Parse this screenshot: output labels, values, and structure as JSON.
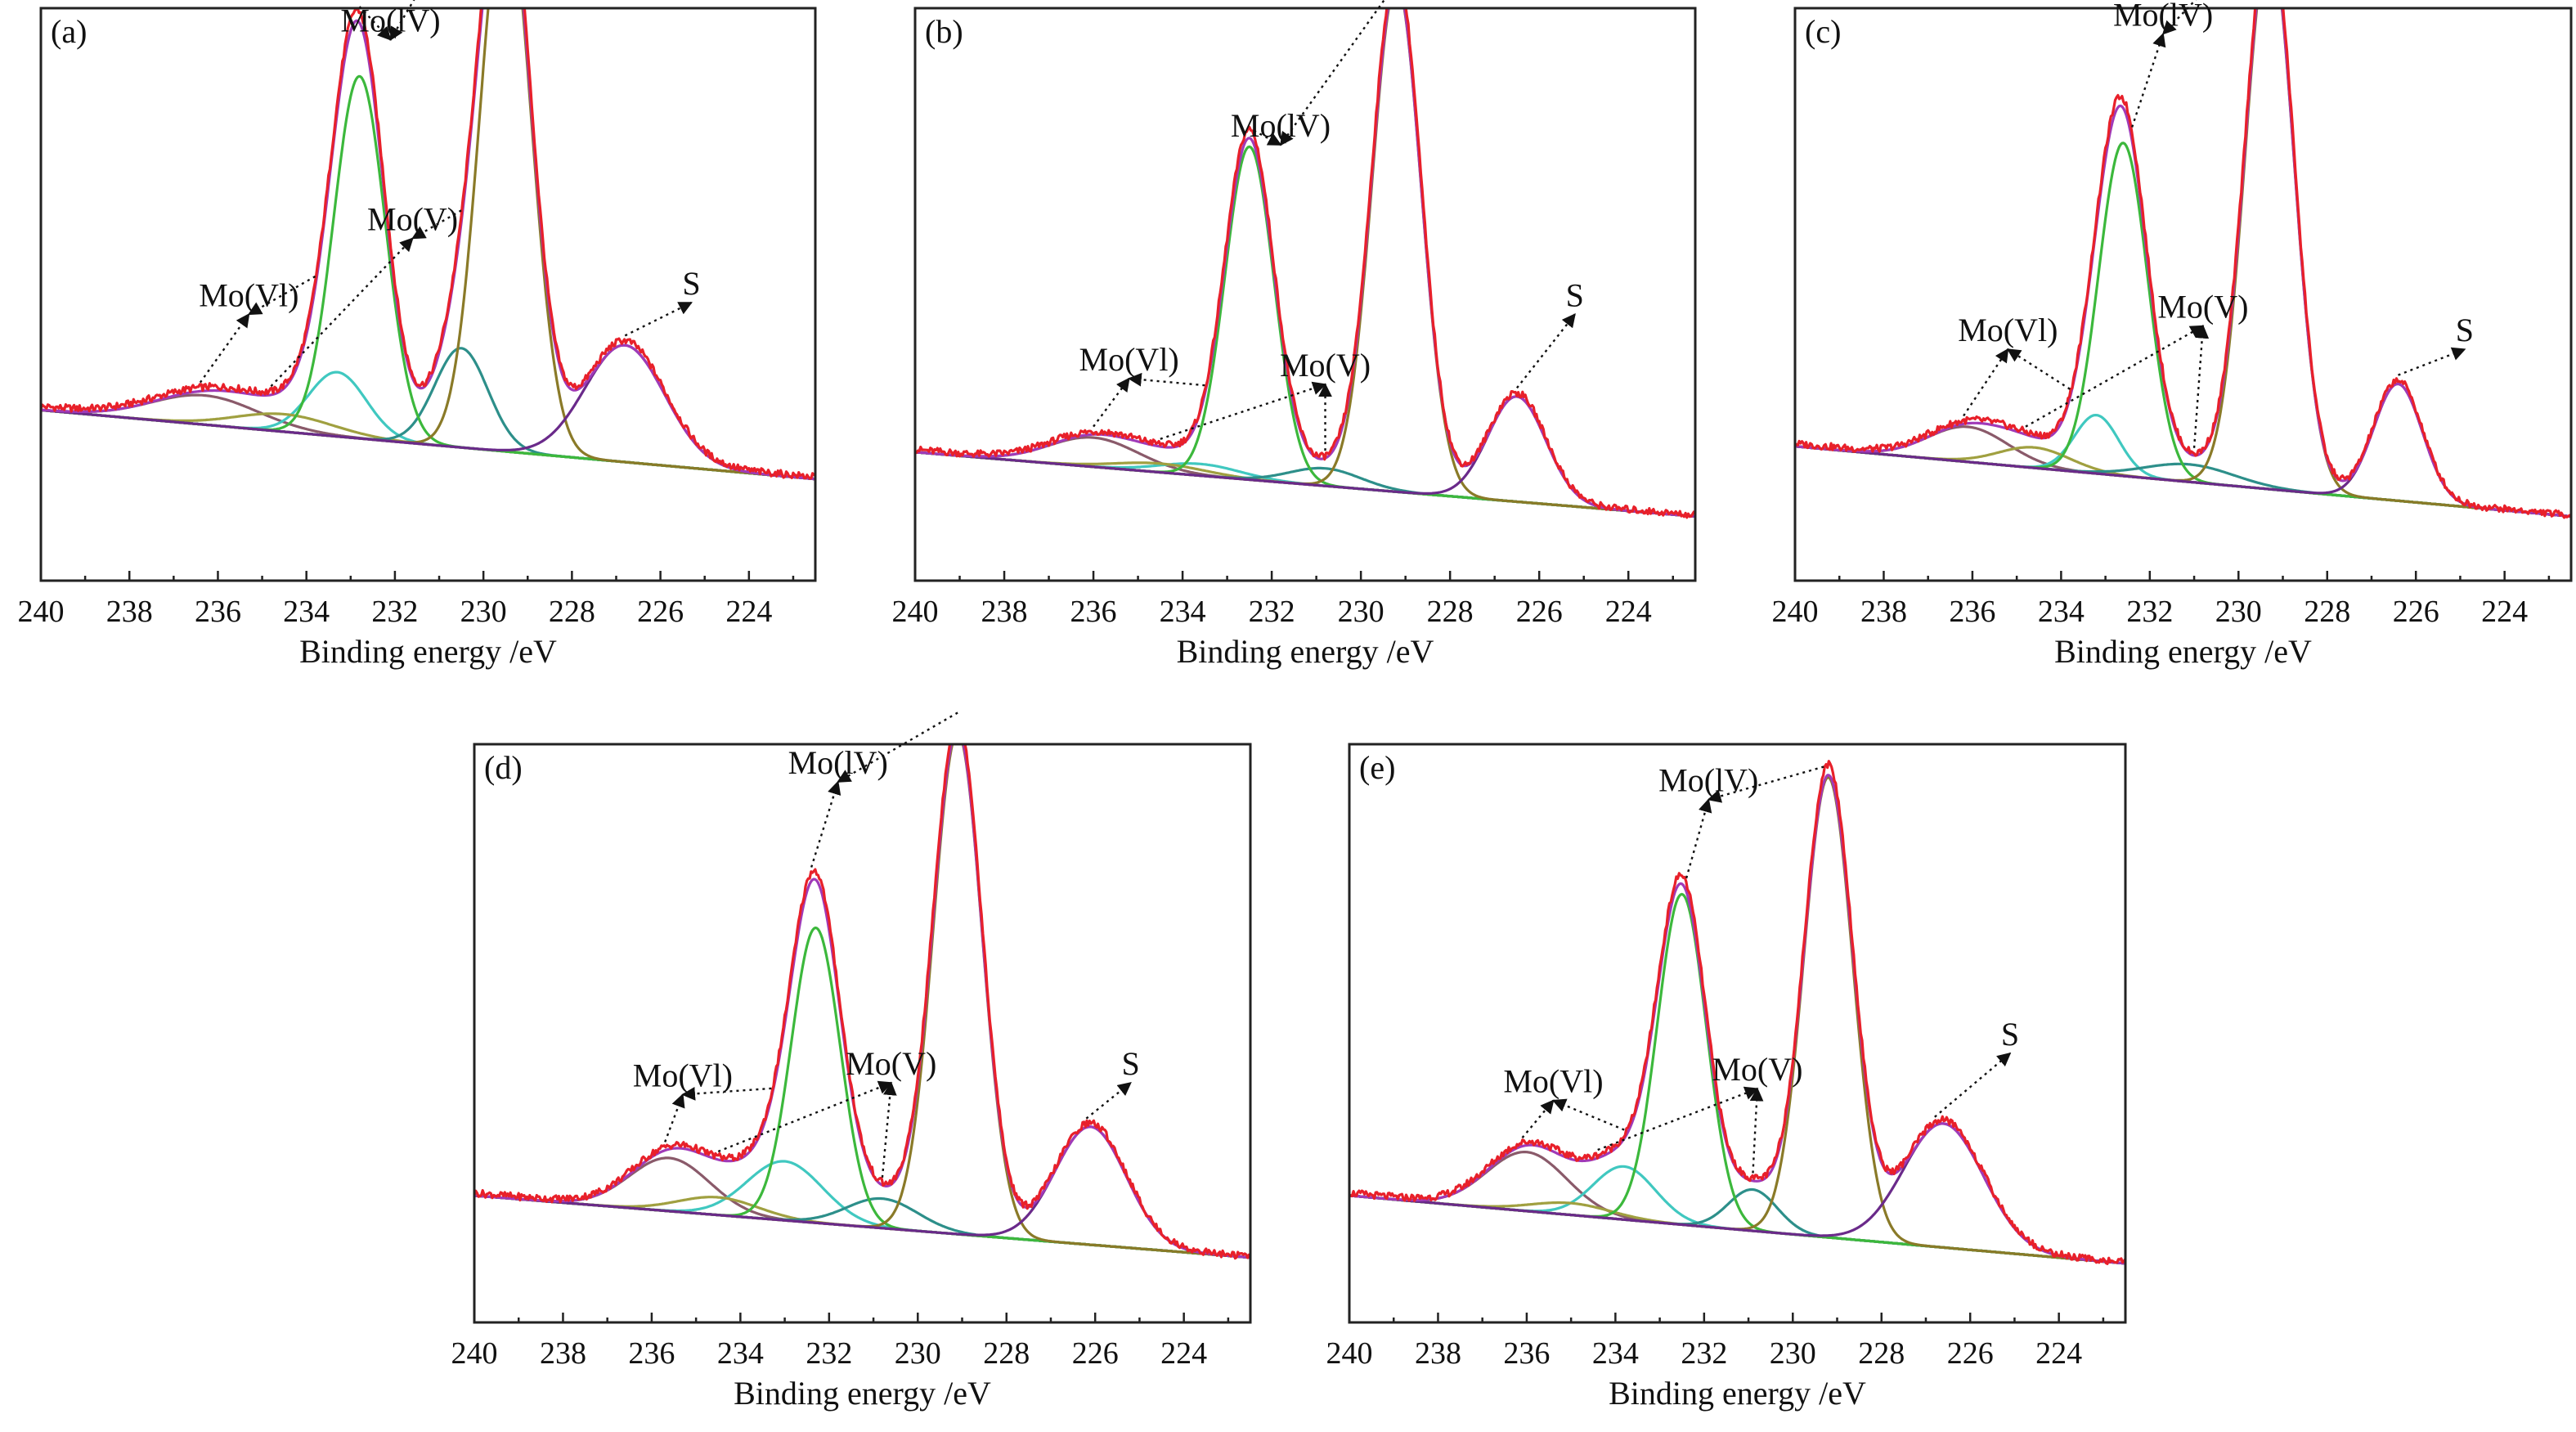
{
  "chart_data": [
    {
      "panel": "(a)",
      "type": "line",
      "xlabel": "Binding energy /eV",
      "ylabel": "",
      "xlim": [
        240,
        222.5
      ],
      "xticks": [
        240,
        238,
        236,
        234,
        232,
        230,
        228,
        226,
        224
      ],
      "ylim": [
        0,
        1
      ],
      "baseline": [
        0.292,
        0.174
      ],
      "peaks": [
        {
          "comp": "mo6_a",
          "center": 236.3,
          "amp": 0.05,
          "width": 1.2
        },
        {
          "comp": "mo6_b",
          "center": 233.3,
          "amp": 0.11,
          "width": 0.65
        },
        {
          "comp": "mo5_a",
          "center": 234.5,
          "amp": 0.03,
          "width": 1.1
        },
        {
          "comp": "mo5_b",
          "center": 230.5,
          "amp": 0.17,
          "width": 0.6
        },
        {
          "comp": "mo4_a",
          "center": 232.8,
          "amp": 0.62,
          "width": 0.58
        },
        {
          "comp": "mo4_b",
          "center": 229.5,
          "amp": 0.95,
          "width": 0.58
        },
        {
          "comp": "s",
          "center": 226.8,
          "amp": 0.2,
          "width": 0.9
        }
      ],
      "annotations": [
        {
          "text": "Mo(Vl)",
          "targets": [
            236.4,
            233.8
          ]
        },
        {
          "text": "Mo(V)",
          "targets": [
            234.8,
            230.5
          ]
        },
        {
          "text": "Mo(lV)",
          "targets": [
            232.8,
            229.6
          ]
        },
        {
          "text": "S",
          "targets": [
            226.8
          ]
        }
      ]
    },
    {
      "panel": "(b)",
      "type": "line",
      "xlabel": "Binding energy /eV",
      "ylabel": "",
      "xlim": [
        240,
        222.5
      ],
      "xticks": [
        240,
        238,
        236,
        234,
        232,
        230,
        228,
        226,
        224
      ],
      "ylim": [
        0,
        1
      ],
      "baseline": [
        0.22,
        0.11
      ],
      "peaks": [
        {
          "comp": "mo6_a",
          "center": 236.0,
          "amp": 0.05,
          "width": 1.0
        },
        {
          "comp": "mo6_b",
          "center": 233.6,
          "amp": 0.02,
          "width": 0.9
        },
        {
          "comp": "mo5_a",
          "center": 234.5,
          "amp": 0.015,
          "width": 1.0
        },
        {
          "comp": "mo5_b",
          "center": 230.8,
          "amp": 0.03,
          "width": 0.8
        },
        {
          "comp": "mo4_a",
          "center": 232.5,
          "amp": 0.57,
          "width": 0.55
        },
        {
          "comp": "mo4_b",
          "center": 229.2,
          "amp": 0.87,
          "width": 0.55
        },
        {
          "comp": "s",
          "center": 226.5,
          "amp": 0.18,
          "width": 0.65
        }
      ],
      "annotations": [
        {
          "text": "Mo(Vl)",
          "targets": [
            236.0,
            233.5
          ]
        },
        {
          "text": "Mo(V)",
          "targets": [
            234.5,
            230.8
          ]
        },
        {
          "text": "Mo(lV)",
          "targets": [
            232.4,
            229.4
          ]
        },
        {
          "text": "S",
          "targets": [
            226.5
          ]
        }
      ]
    },
    {
      "panel": "(c)",
      "type": "line",
      "xlabel": "Binding energy /eV",
      "ylabel": "",
      "xlim": [
        240,
        222.5
      ],
      "xticks": [
        240,
        238,
        236,
        234,
        232,
        230,
        228,
        226,
        224
      ],
      "ylim": [
        0,
        1
      ],
      "baseline": [
        0.23,
        0.11
      ],
      "peaks": [
        {
          "comp": "mo6_a",
          "center": 236.1,
          "amp": 0.06,
          "width": 0.9
        },
        {
          "comp": "mo6_b",
          "center": 233.2,
          "amp": 0.1,
          "width": 0.5
        },
        {
          "comp": "mo5_a",
          "center": 234.6,
          "amp": 0.035,
          "width": 0.8
        },
        {
          "comp": "mo5_b",
          "center": 231.1,
          "amp": 0.03,
          "width": 1.0
        },
        {
          "comp": "mo4_a",
          "center": 232.6,
          "amp": 0.57,
          "width": 0.55
        },
        {
          "comp": "mo4_b",
          "center": 229.3,
          "amp": 0.94,
          "width": 0.55
        },
        {
          "comp": "s",
          "center": 226.4,
          "amp": 0.2,
          "width": 0.55
        }
      ],
      "annotations": [
        {
          "text": "Mo(Vl)",
          "targets": [
            236.2,
            233.8
          ]
        },
        {
          "text": "Mo(V)",
          "targets": [
            234.8,
            231.0
          ]
        },
        {
          "text": "Mo(lV)",
          "targets": [
            232.4,
            229.4
          ]
        },
        {
          "text": "S",
          "targets": [
            226.4
          ]
        }
      ]
    },
    {
      "panel": "(d)",
      "type": "line",
      "xlabel": "Binding energy /eV",
      "ylabel": "",
      "xlim": [
        240,
        222.5
      ],
      "xticks": [
        240,
        238,
        236,
        234,
        232,
        230,
        228,
        226,
        224
      ],
      "ylim": [
        0,
        1
      ],
      "baseline": [
        0.215,
        0.11
      ],
      "peaks": [
        {
          "comp": "mo6_a",
          "center": 235.6,
          "amp": 0.09,
          "width": 0.9
        },
        {
          "comp": "mo6_b",
          "center": 233.0,
          "amp": 0.1,
          "width": 0.85
        },
        {
          "comp": "mo5_a",
          "center": 234.5,
          "amp": 0.03,
          "width": 0.9
        },
        {
          "comp": "mo5_b",
          "center": 230.8,
          "amp": 0.05,
          "width": 0.8
        },
        {
          "comp": "mo4_a",
          "center": 232.3,
          "amp": 0.5,
          "width": 0.55
        },
        {
          "comp": "mo4_b",
          "center": 229.1,
          "amp": 0.85,
          "width": 0.55
        },
        {
          "comp": "s",
          "center": 226.1,
          "amp": 0.2,
          "width": 0.8
        }
      ],
      "annotations": [
        {
          "text": "Mo(Vl)",
          "targets": [
            235.7,
            233.3
          ]
        },
        {
          "text": "Mo(V)",
          "targets": [
            234.5,
            230.8
          ]
        },
        {
          "text": "Mo(lV)",
          "targets": [
            232.4,
            229.1
          ]
        },
        {
          "text": "S",
          "targets": [
            226.2
          ]
        }
      ]
    },
    {
      "panel": "(e)",
      "type": "line",
      "xlabel": "Binding energy /eV",
      "ylabel": "",
      "xlim": [
        240,
        222.5
      ],
      "xticks": [
        240,
        238,
        236,
        234,
        232,
        230,
        228,
        226,
        224
      ],
      "ylim": [
        0,
        1
      ],
      "baseline": [
        0.215,
        0.1
      ],
      "peaks": [
        {
          "comp": "mo6_a",
          "center": 236.0,
          "amp": 0.1,
          "width": 0.9
        },
        {
          "comp": "mo6_b",
          "center": 233.8,
          "amp": 0.09,
          "width": 0.7
        },
        {
          "comp": "mo5_a",
          "center": 235.0,
          "amp": 0.02,
          "width": 0.9
        },
        {
          "comp": "mo5_b",
          "center": 230.9,
          "amp": 0.07,
          "width": 0.55
        },
        {
          "comp": "mo4_a",
          "center": 232.5,
          "amp": 0.56,
          "width": 0.55
        },
        {
          "comp": "mo4_b",
          "center": 229.2,
          "amp": 0.78,
          "width": 0.55
        },
        {
          "comp": "s",
          "center": 226.6,
          "amp": 0.21,
          "width": 0.9
        }
      ],
      "annotations": [
        {
          "text": "Mo(Vl)",
          "targets": [
            236.1,
            233.8
          ]
        },
        {
          "text": "Mo(V)",
          "targets": [
            234.4,
            230.9
          ]
        },
        {
          "text": "Mo(lV)",
          "targets": [
            232.4,
            229.3
          ]
        },
        {
          "text": "S",
          "targets": [
            226.8
          ]
        }
      ]
    }
  ],
  "colors": {
    "raw": "#e8202a",
    "envelope": "#a03ab8",
    "mo4": "#8a7a28",
    "mo4_first": "#3cb83c",
    "mo5": "#2d8f8a",
    "mo6": "#8a5a6a",
    "mo6_b": "#40c8c0",
    "mo5_a": "#a0a040",
    "s": "#6a2a8a",
    "baseline": "#5a5a5a",
    "frame": "#222222"
  }
}
